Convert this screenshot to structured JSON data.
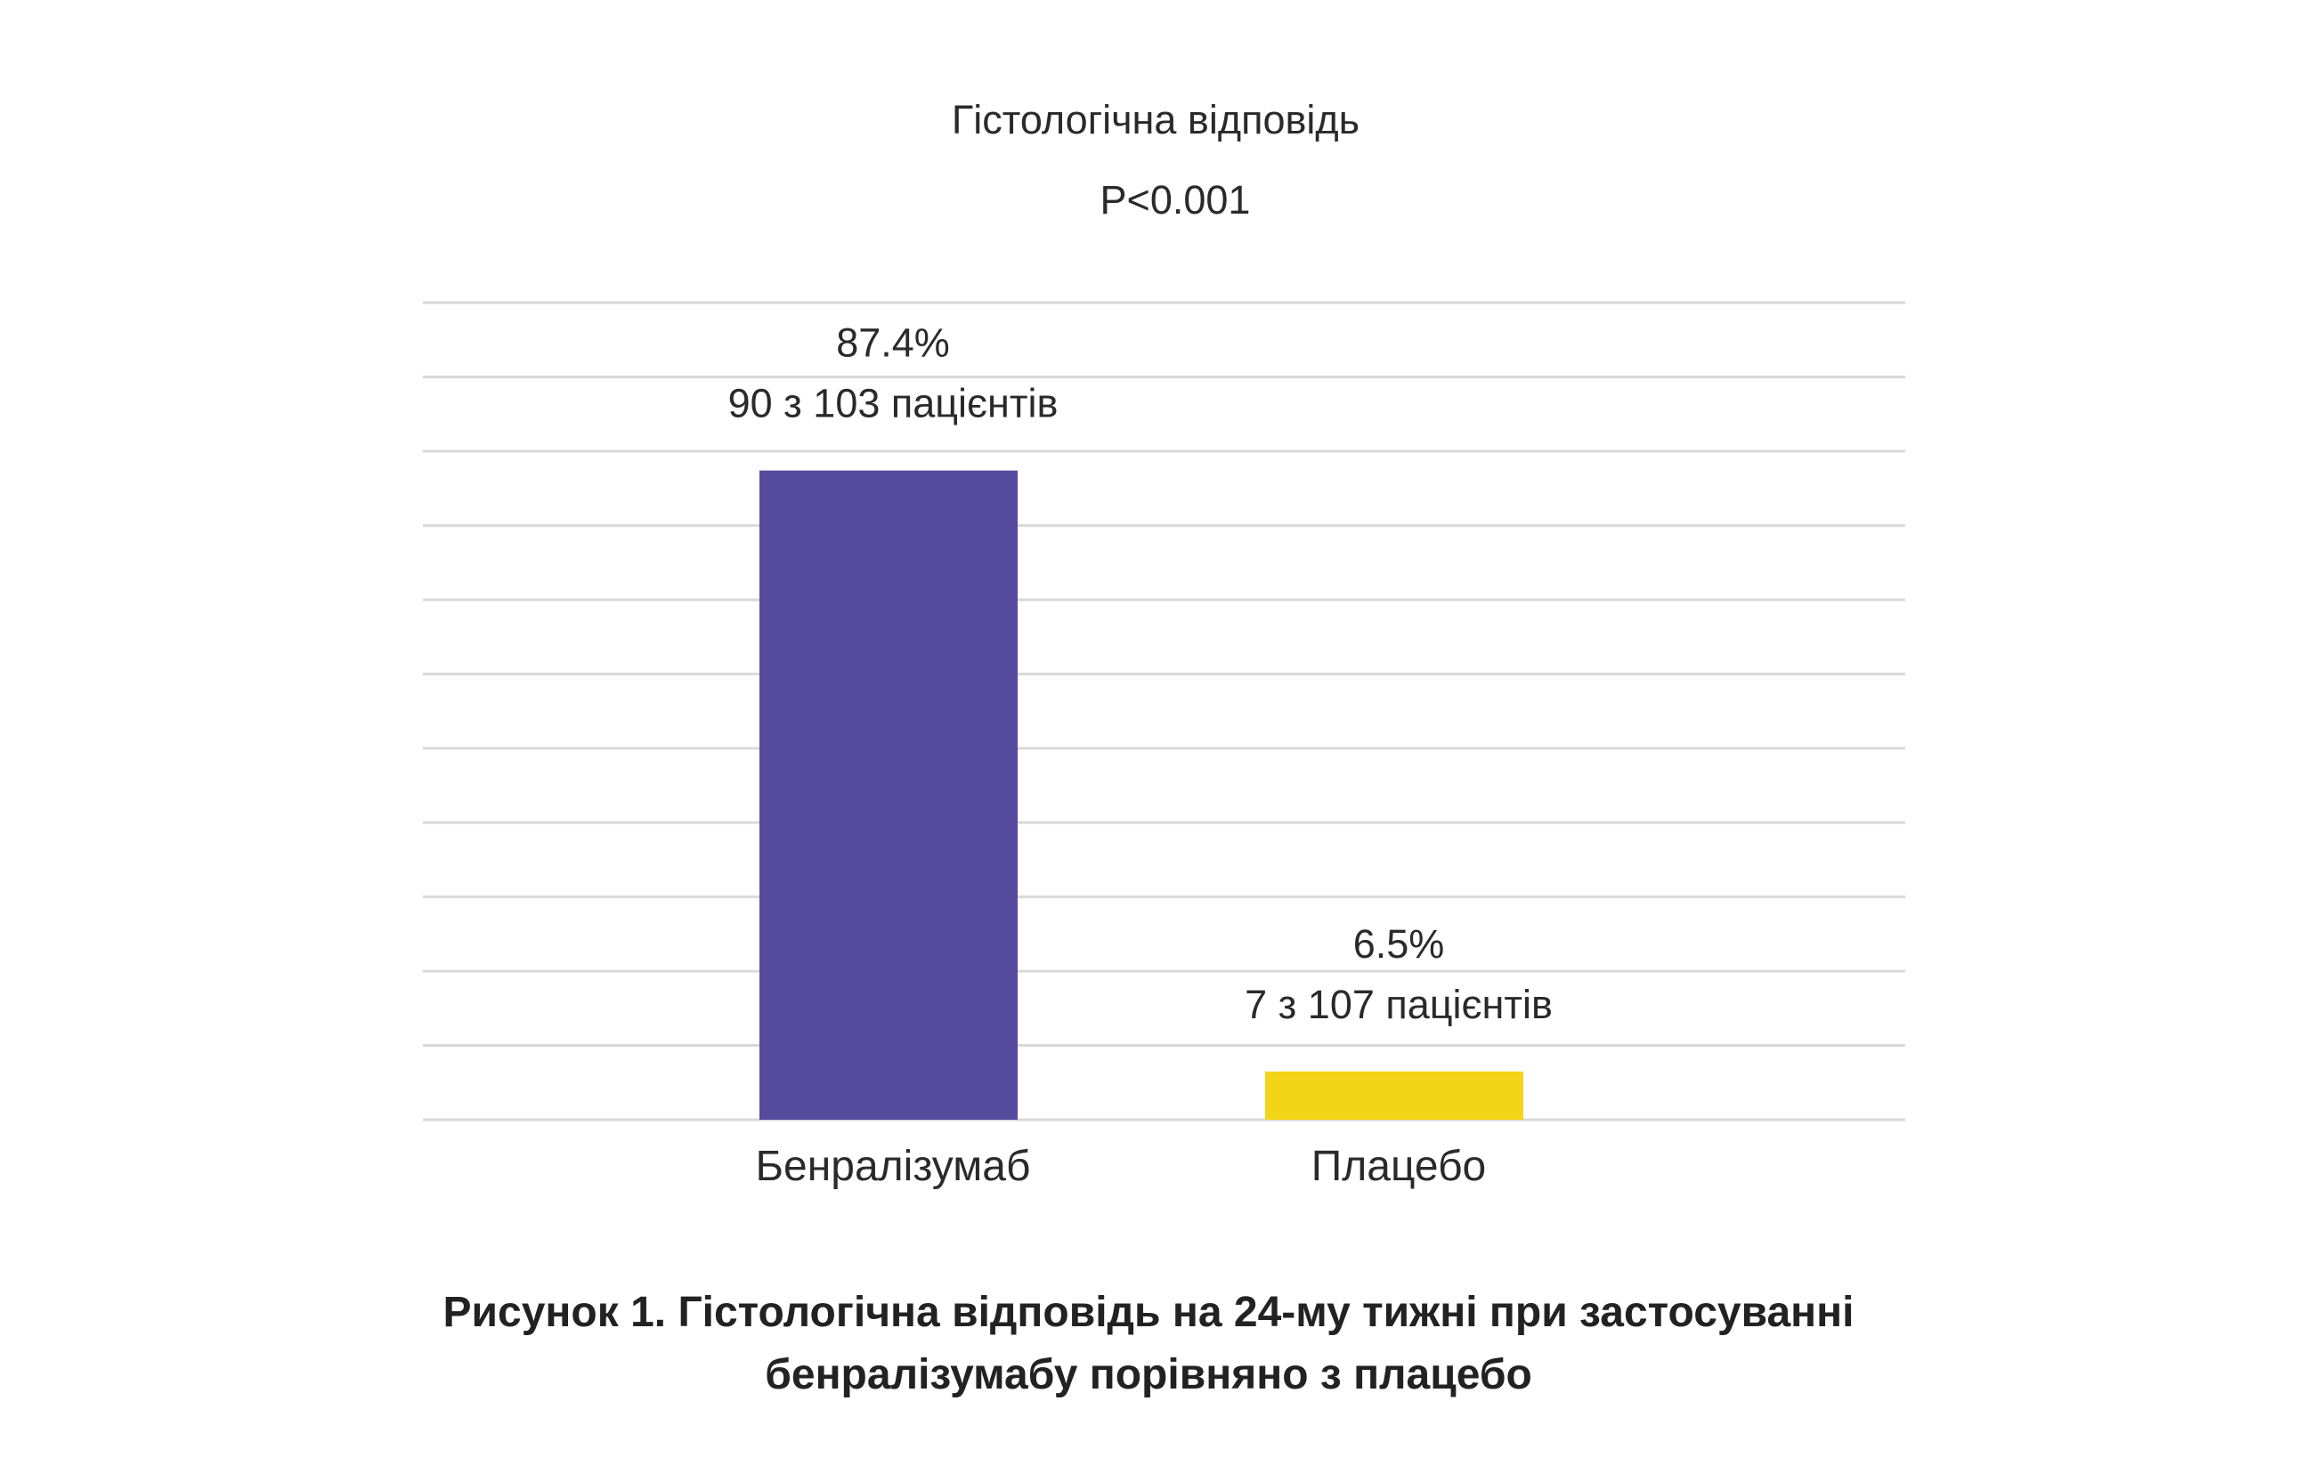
{
  "chart_data": {
    "type": "bar",
    "title": "Гістологічна відповідь",
    "subtitle": "P<0.001",
    "categories": [
      "Бенралізумаб",
      "Плацебо"
    ],
    "values": [
      87.4,
      6.5
    ],
    "value_labels": [
      "87.4%",
      "6.5%"
    ],
    "secondary_labels": [
      "90 з 103 пацієнтів",
      "7 з 107 пацієнтів"
    ],
    "ylim": [
      0,
      110
    ],
    "gridline_step": 10,
    "grid": true,
    "colors": [
      "#554b9c",
      "#f3d518"
    ]
  },
  "caption": {
    "line1": "Рисунок 1. Гістологічна відповідь на 24-му тижні при застосуванні",
    "line2": "бенралізумабу порівняно з плацебо"
  }
}
